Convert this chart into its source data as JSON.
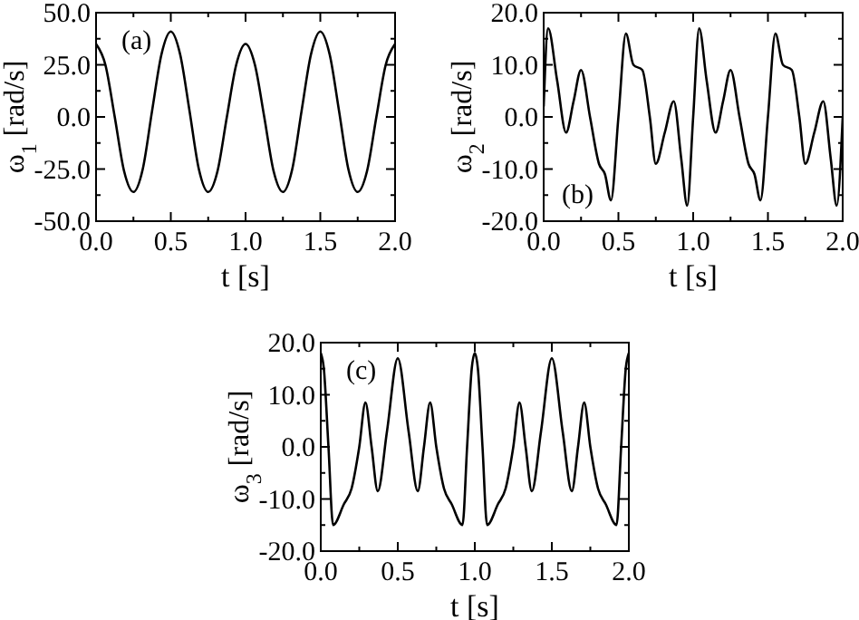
{
  "chart_data": [
    {
      "type": "line",
      "xlabel": "t [s]",
      "ylabel": "ω$_{1}$ [rad/s]",
      "annotations": [
        "(a)"
      ],
      "xlim": [
        0,
        2
      ],
      "ylim": [
        -50,
        50
      ],
      "xticks": [
        {
          "value": 0,
          "label": "0.0"
        },
        {
          "value": 0.25,
          "label": null
        },
        {
          "value": 0.5,
          "label": "0.5"
        },
        {
          "value": 0.75,
          "label": null
        },
        {
          "value": 1,
          "label": "1.0"
        },
        {
          "value": 1.25,
          "label": null
        },
        {
          "value": 1.5,
          "label": "1.5"
        },
        {
          "value": 1.75,
          "label": null
        },
        {
          "value": 2,
          "label": "2.0"
        }
      ],
      "yticks": [
        {
          "value": -50,
          "label": "-50.0"
        },
        {
          "value": -37.5,
          "label": null
        },
        {
          "value": -25,
          "label": "-25.0"
        },
        {
          "value": -12.5,
          "label": null
        },
        {
          "value": 0,
          "label": "0.0"
        },
        {
          "value": 12.5,
          "label": null
        },
        {
          "value": 25,
          "label": "25.0"
        },
        {
          "value": 37.5,
          "label": null
        },
        {
          "value": 50,
          "label": "50.0"
        }
      ],
      "grid": false,
      "marker": "none",
      "line_style": "solid",
      "series": [
        {
          "color": "#000000",
          "x": [
            0,
            0.0625,
            0.125,
            0.1875,
            0.25,
            0.3125,
            0.375,
            0.4375,
            0.5,
            0.5625,
            0.625,
            0.6875,
            0.75,
            0.8125,
            0.875,
            0.9375,
            1,
            1.0625,
            1.125,
            1.1875,
            1.25,
            1.3125,
            1.375,
            1.4375,
            1.5,
            1.5625,
            1.625,
            1.6875,
            1.75,
            1.8125,
            1.875,
            1.9375,
            2
          ],
          "values": [
            35,
            25,
            0,
            -26,
            -36,
            -25,
            3,
            30,
            41,
            30,
            3,
            -25,
            -36,
            -26,
            0,
            25,
            35,
            25,
            0,
            -26,
            -36,
            -25,
            3,
            30,
            41,
            30,
            3,
            -25,
            -36,
            -26,
            0,
            25,
            35
          ]
        }
      ]
    },
    {
      "type": "line",
      "xlabel": "t [s]",
      "ylabel": "ω$_{2}$ [rad/s]",
      "annotations": [
        "(b)"
      ],
      "xlim": [
        0,
        2
      ],
      "ylim": [
        -20,
        20
      ],
      "xticks": [
        {
          "value": 0,
          "label": "0.0"
        },
        {
          "value": 0.25,
          "label": null
        },
        {
          "value": 0.5,
          "label": "0.5"
        },
        {
          "value": 0.75,
          "label": null
        },
        {
          "value": 1,
          "label": "1.0"
        },
        {
          "value": 1.25,
          "label": null
        },
        {
          "value": 1.5,
          "label": "1.5"
        },
        {
          "value": 1.75,
          "label": null
        },
        {
          "value": 2,
          "label": "2.0"
        }
      ],
      "yticks": [
        {
          "value": -20,
          "label": "-20.0"
        },
        {
          "value": -15,
          "label": null
        },
        {
          "value": -10,
          "label": "-10.0"
        },
        {
          "value": -5,
          "label": null
        },
        {
          "value": 0,
          "label": "0.0"
        },
        {
          "value": 5,
          "label": null
        },
        {
          "value": 10,
          "label": "10.0"
        },
        {
          "value": 15,
          "label": null
        },
        {
          "value": 20,
          "label": "20.0"
        }
      ],
      "grid": false,
      "marker": "none",
      "line_style": "solid",
      "series": [
        {
          "color": "#000000",
          "x": [
            0,
            0.03,
            0.09,
            0.15,
            0.2,
            0.25,
            0.31,
            0.37,
            0.41,
            0.45,
            0.5,
            0.55,
            0.6,
            0.66,
            0.71,
            0.75,
            0.81,
            0.87,
            0.92,
            0.96,
            1,
            1.04,
            1.09,
            1.15,
            1.2,
            1.25,
            1.31,
            1.37,
            1.41,
            1.45,
            1.5,
            1.55,
            1.6,
            1.66,
            1.71,
            1.75,
            1.81,
            1.87,
            1.92,
            1.96,
            2
          ],
          "values": [
            2,
            17,
            7,
            -3,
            3,
            9,
            0,
            -9,
            -11,
            -16,
            0,
            16,
            10,
            9,
            0,
            -9,
            -3,
            3,
            -8,
            -17,
            0,
            17,
            7,
            -3,
            3,
            9,
            0,
            -9,
            -11,
            -16,
            0,
            16,
            10,
            9,
            0,
            -9,
            -3,
            3,
            -8,
            -17,
            0
          ]
        }
      ]
    },
    {
      "type": "line",
      "xlabel": "t [s]",
      "ylabel": "ω$_{3}$ [rad/s]",
      "annotations": [
        "(c)"
      ],
      "xlim": [
        0,
        2
      ],
      "ylim": [
        -20,
        20
      ],
      "xticks": [
        {
          "value": 0,
          "label": "0.0"
        },
        {
          "value": 0.25,
          "label": null
        },
        {
          "value": 0.5,
          "label": "0.5"
        },
        {
          "value": 0.75,
          "label": null
        },
        {
          "value": 1,
          "label": "1.0"
        },
        {
          "value": 1.25,
          "label": null
        },
        {
          "value": 1.5,
          "label": "1.5"
        },
        {
          "value": 1.75,
          "label": null
        },
        {
          "value": 2,
          "label": "2.0"
        }
      ],
      "yticks": [
        {
          "value": -20,
          "label": "-20.0"
        },
        {
          "value": -15,
          "label": null
        },
        {
          "value": -10,
          "label": "-10.0"
        },
        {
          "value": -5,
          "label": null
        },
        {
          "value": 0,
          "label": "0.0"
        },
        {
          "value": 5,
          "label": null
        },
        {
          "value": 10,
          "label": "10.0"
        },
        {
          "value": 15,
          "label": null
        },
        {
          "value": 20,
          "label": "20.0"
        }
      ],
      "grid": false,
      "marker": "none",
      "line_style": "solid",
      "series": [
        {
          "color": "#000000",
          "x": [
            0,
            0.02,
            0.05,
            0.08,
            0.15,
            0.2,
            0.25,
            0.29,
            0.33,
            0.37,
            0.43,
            0.5,
            0.57,
            0.63,
            0.67,
            0.71,
            0.75,
            0.8,
            0.85,
            0.92,
            0.95,
            0.98,
            1,
            1.02,
            1.05,
            1.08,
            1.15,
            1.2,
            1.25,
            1.29,
            1.33,
            1.37,
            1.43,
            1.5,
            1.57,
            1.63,
            1.67,
            1.71,
            1.75,
            1.8,
            1.85,
            1.92,
            1.95,
            1.98,
            2
          ],
          "values": [
            18,
            15,
            0,
            -15,
            -11,
            -8,
            0,
            8.5,
            0,
            -8.5,
            3,
            17,
            3,
            -8.5,
            0,
            8.5,
            0,
            -8,
            -11,
            -15,
            0,
            15,
            18,
            15,
            0,
            -15,
            -11,
            -8,
            0,
            8.5,
            0,
            -8.5,
            3,
            17,
            3,
            -8.5,
            0,
            8.5,
            0,
            -8,
            -11,
            -15,
            0,
            15,
            18
          ]
        }
      ]
    }
  ]
}
